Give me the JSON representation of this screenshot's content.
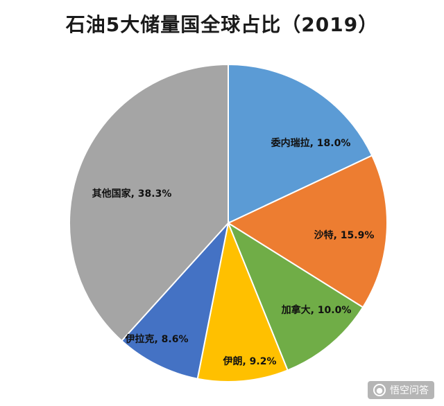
{
  "chart_data": {
    "type": "pie",
    "title": "石油5大储量国全球占比（2019）",
    "slices": [
      {
        "label": "委内瑞拉",
        "value": 18.0,
        "text": "委内瑞拉, 18.0%",
        "color": "#5b9bd5"
      },
      {
        "label": "沙特",
        "value": 15.9,
        "text": "沙特, 15.9%",
        "color": "#ed7d31"
      },
      {
        "label": "加拿大",
        "value": 10.0,
        "text": "加拿大, 10.0%",
        "color": "#70ad47"
      },
      {
        "label": "伊朗",
        "value": 9.2,
        "text": "伊朗, 9.2%",
        "color": "#ffc000"
      },
      {
        "label": "伊拉克",
        "value": 8.6,
        "text": "伊拉克, 8.6%",
        "color": "#4472c4"
      },
      {
        "label": "其他国家",
        "value": 38.3,
        "text": "其他国家, 38.3%",
        "color": "#a5a5a5"
      }
    ],
    "start": "12 o'clock",
    "direction": "clockwise"
  },
  "watermark": {
    "text": "悟空问答",
    "icon": "chat-bubble-icon"
  }
}
